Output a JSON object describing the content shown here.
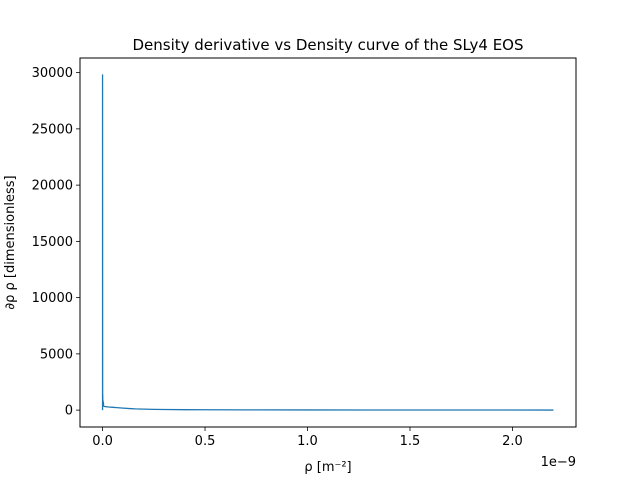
{
  "chart_data": {
    "type": "line",
    "title": "Density derivative vs Density curve of the SLy4 EOS",
    "xlabel": "ρ [m⁻²]",
    "ylabel": "∂ρ ρ [dimensionless]",
    "x_offset_label": "1e−9",
    "x_scale": 1e-09,
    "xlim": [
      -0.11,
      2.31
    ],
    "ylim": [
      -1500,
      31300
    ],
    "x_ticks": [
      0.0,
      0.5,
      1.0,
      1.5,
      2.0
    ],
    "x_tick_labels": [
      "0.0",
      "0.5",
      "1.0",
      "1.5",
      "2.0"
    ],
    "y_ticks": [
      0,
      5000,
      10000,
      15000,
      20000,
      25000,
      30000
    ],
    "y_tick_labels": [
      "0",
      "5000",
      "10000",
      "15000",
      "20000",
      "25000",
      "30000"
    ],
    "grid": false,
    "line_color": "#1f77b4",
    "series": [
      {
        "name": "",
        "x": [
          0.0,
          0.0,
          0.0005,
          0.001,
          0.001,
          0.0015,
          0.002,
          0.003,
          0.004,
          0.005,
          0.006,
          0.008,
          0.01,
          0.015,
          0.02,
          0.03,
          0.05,
          0.07,
          0.1,
          0.13,
          0.16,
          0.2,
          0.25,
          0.3,
          0.4,
          0.5,
          0.7,
          1.0,
          1.3,
          1.6,
          1.9,
          2.2
        ],
        "y": [
          0,
          29800,
          1500,
          600,
          1400,
          500,
          900,
          420,
          700,
          380,
          350,
          330,
          320,
          310,
          300,
          280,
          250,
          220,
          180,
          140,
          110,
          90,
          70,
          55,
          40,
          32,
          25,
          18,
          14,
          11,
          9,
          8
        ]
      }
    ]
  }
}
